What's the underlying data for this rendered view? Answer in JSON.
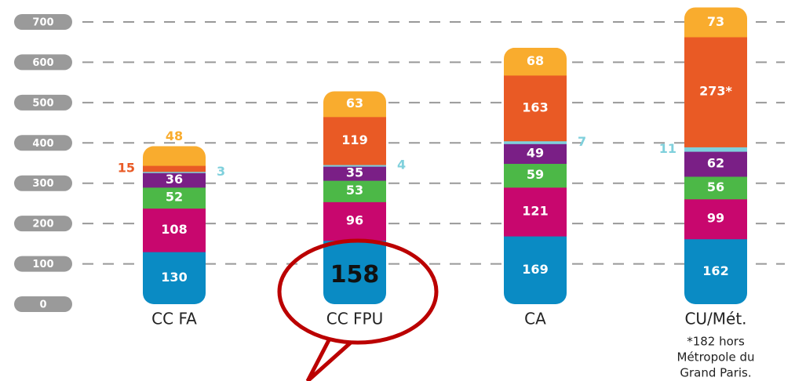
{
  "chart_data": {
    "type": "stacked_bar",
    "categories": [
      "CC  FA",
      "CC  FPU",
      "CA",
      "CU/Mét."
    ],
    "series": [
      {
        "color": "#0a8bc4",
        "values": [
          130,
          158,
          169,
          162
        ]
      },
      {
        "color": "#c8076e",
        "values": [
          108,
          96,
          121,
          99
        ]
      },
      {
        "color": "#4cb847",
        "values": [
          52,
          53,
          59,
          56
        ]
      },
      {
        "color": "#7a1f86",
        "values": [
          36,
          35,
          49,
          62
        ]
      },
      {
        "color": "#7fd0dc",
        "values": [
          3,
          4,
          7,
          11
        ]
      },
      {
        "color": "#e95a25",
        "values": [
          15,
          119,
          163,
          273
        ],
        "value_labels": [
          "15",
          "119",
          "163",
          "273*"
        ]
      },
      {
        "color": "#f9ac2e",
        "values": [
          48,
          63,
          68,
          73
        ]
      }
    ],
    "ylim": [
      0,
      740
    ],
    "yticks": [
      0,
      100,
      200,
      300,
      400,
      500,
      600,
      700
    ],
    "grid": true,
    "footnote": [
      "*182 hors",
      "Métropole du",
      "Grand Paris."
    ]
  }
}
